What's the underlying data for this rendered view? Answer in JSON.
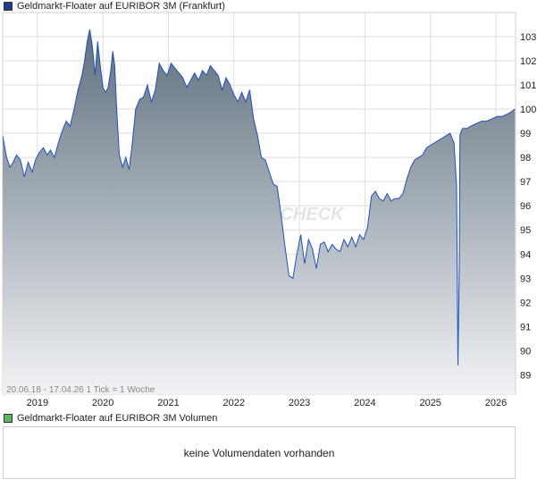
{
  "colors": {
    "price_swatch": "#1f3c88",
    "volume_swatch": "#5cb85c",
    "line": "#1f4fbf",
    "fill_top": "#5f707d",
    "fill_bottom": "#f2f3f6",
    "grid": "#dddddd",
    "border": "#cfcfcf"
  },
  "watermark": "CHECK",
  "volume_panel": {
    "legend": "Geldmarkt-Floater auf EURIBOR 3M Volumen",
    "message": "keine Volumendaten vorhanden"
  },
  "chart_data": {
    "type": "area",
    "title": "Geldmarkt-Floater auf EURIBOR 3M (Frankfurt)",
    "info_text": "20.06.18 - 17.04.26   1 Tick = 1 Woche",
    "ylim": [
      88.2,
      104.0
    ],
    "xlim": [
      2018.47,
      2026.3
    ],
    "y_ticks": [
      89,
      90,
      91,
      92,
      93,
      94,
      95,
      96,
      97,
      98,
      99,
      100,
      101,
      102,
      103
    ],
    "x_ticks": [
      "2019",
      "2020",
      "2021",
      "2022",
      "2023",
      "2024",
      "2025",
      "2026"
    ],
    "grid": true,
    "x": [
      2018.47,
      2018.53,
      2018.58,
      2018.63,
      2018.68,
      2018.74,
      2018.8,
      2018.86,
      2018.92,
      2018.97,
      2019.03,
      2019.09,
      2019.15,
      2019.2,
      2019.26,
      2019.32,
      2019.38,
      2019.44,
      2019.5,
      2019.56,
      2019.62,
      2019.68,
      2019.72,
      2019.76,
      2019.8,
      2019.84,
      2019.88,
      2019.92,
      2019.96,
      2020.0,
      2020.04,
      2020.08,
      2020.12,
      2020.15,
      2020.18,
      2020.21,
      2020.25,
      2020.3,
      2020.35,
      2020.4,
      2020.45,
      2020.5,
      2020.56,
      2020.62,
      2020.68,
      2020.74,
      2020.8,
      2020.86,
      2020.92,
      2020.98,
      2021.04,
      2021.1,
      2021.16,
      2021.22,
      2021.28,
      2021.34,
      2021.4,
      2021.46,
      2021.52,
      2021.58,
      2021.64,
      2021.7,
      2021.76,
      2021.82,
      2021.88,
      2021.94,
      2022.0,
      2022.06,
      2022.12,
      2022.18,
      2022.24,
      2022.3,
      2022.36,
      2022.42,
      2022.48,
      2022.54,
      2022.6,
      2022.66,
      2022.72,
      2022.78,
      2022.84,
      2022.9,
      2022.96,
      2023.02,
      2023.08,
      2023.14,
      2023.2,
      2023.26,
      2023.32,
      2023.38,
      2023.44,
      2023.5,
      2023.56,
      2023.62,
      2023.68,
      2023.74,
      2023.8,
      2023.86,
      2023.92,
      2023.98,
      2024.04,
      2024.1,
      2024.16,
      2024.22,
      2024.28,
      2024.34,
      2024.4,
      2024.46,
      2024.52,
      2024.58,
      2024.64,
      2024.7,
      2024.76,
      2024.82,
      2024.88,
      2024.94,
      2025.0,
      2025.06,
      2025.12,
      2025.18,
      2025.24,
      2025.3,
      2025.36,
      2025.4,
      2025.42,
      2025.44,
      2025.45,
      2025.47,
      2025.49,
      2025.52,
      2025.56,
      2025.62,
      2025.7,
      2025.78,
      2025.86,
      2025.94,
      2026.02,
      2026.1,
      2026.18,
      2026.24,
      2026.29
    ],
    "values": [
      98.9,
      98.0,
      97.6,
      97.8,
      98.1,
      97.9,
      97.2,
      97.8,
      97.4,
      97.9,
      98.2,
      98.4,
      98.1,
      98.3,
      98.0,
      98.6,
      99.1,
      99.5,
      99.3,
      100.0,
      100.8,
      101.4,
      102.0,
      102.8,
      103.3,
      102.6,
      101.4,
      102.8,
      101.8,
      100.9,
      100.7,
      100.9,
      101.6,
      102.4,
      101.8,
      100.0,
      98.1,
      97.6,
      98.0,
      97.5,
      98.6,
      100.0,
      100.4,
      100.5,
      101.0,
      100.3,
      100.8,
      101.9,
      101.6,
      101.4,
      101.9,
      101.7,
      101.5,
      101.3,
      100.9,
      101.2,
      101.5,
      101.2,
      101.6,
      101.4,
      101.8,
      101.6,
      101.4,
      100.8,
      101.3,
      101.0,
      100.6,
      100.3,
      100.7,
      100.3,
      100.8,
      99.6,
      98.9,
      98.0,
      97.9,
      97.4,
      96.9,
      96.8,
      95.6,
      94.3,
      93.1,
      93.0,
      94.0,
      94.8,
      93.6,
      94.6,
      94.2,
      93.4,
      94.4,
      94.5,
      94.1,
      94.4,
      94.2,
      94.1,
      94.6,
      94.3,
      94.7,
      94.3,
      94.8,
      94.6,
      95.1,
      96.4,
      96.6,
      96.3,
      96.2,
      96.5,
      96.2,
      96.3,
      96.3,
      96.5,
      97.1,
      97.6,
      97.9,
      98.0,
      98.1,
      98.4,
      98.5,
      98.6,
      98.7,
      98.8,
      98.9,
      99.0,
      98.6,
      96.8,
      89.4,
      93.5,
      98.9,
      99.1,
      99.2,
      99.2,
      99.2,
      99.3,
      99.4,
      99.5,
      99.5,
      99.6,
      99.7,
      99.7,
      99.8,
      99.9,
      100.0
    ]
  }
}
